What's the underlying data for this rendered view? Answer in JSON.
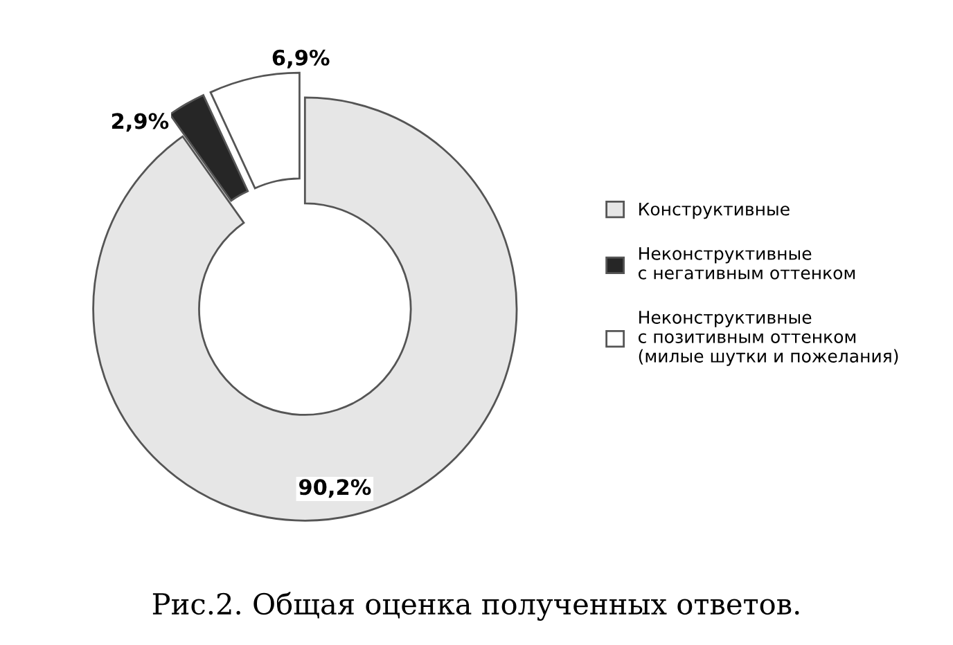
{
  "chart_data": {
    "type": "donut",
    "title": "Рис.2. Общая оценка полученных ответов.",
    "categories": [
      "Конструктивные",
      "Неконструктивные\nс негативным оттенком",
      "Неконструктивные\nс позитивным оттенком\n(милые шутки и пожелания)"
    ],
    "values": [
      90.2,
      2.9,
      6.9
    ],
    "colors": [
      "#e6e6e6",
      "#262626",
      "#ffffff"
    ],
    "value_labels": [
      "90,2%",
      "2,9%",
      "6,9%"
    ],
    "legend": "right"
  }
}
